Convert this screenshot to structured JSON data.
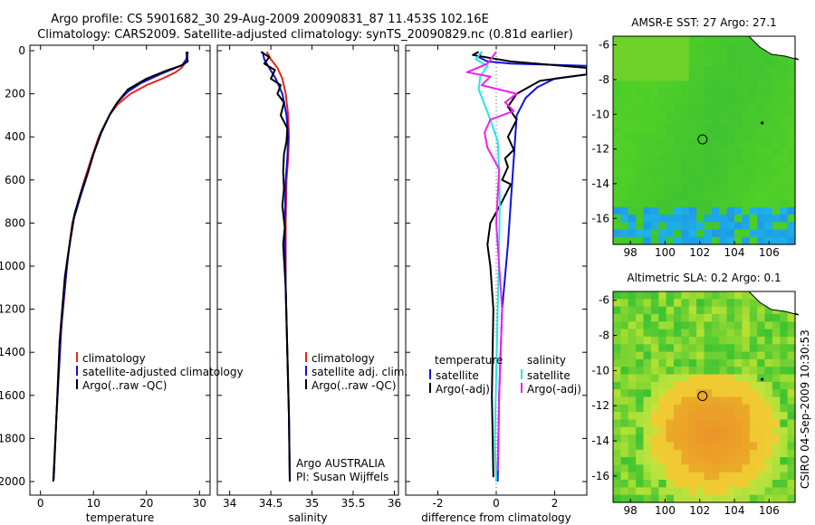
{
  "title_line1": "Argo profile: CS 5901682_30 29-Aug-2009 20090831_87 11.453S 102.16E",
  "title_line2": "Climatology: CARS2009. Satellite-adjusted climatology: synTS_20090829.nc (0.81d earlier)",
  "credit": "CSIRO 04-Sep-2009 10:30:53",
  "colors": {
    "climatology": "#e8231e",
    "satellite": "#1010e0",
    "argo": "#000000",
    "sal_satellite": "#22e6e6",
    "sal_argo": "#f020f0"
  },
  "chart_data": [
    {
      "id": "temperature",
      "type": "line",
      "xlabel": "temperature",
      "xlim": [
        -2,
        32
      ],
      "ylim": [
        0,
        2050
      ],
      "xticks": [
        0,
        10,
        20,
        30
      ],
      "xtick_labels": [
        "0",
        "10",
        "20",
        "30"
      ],
      "yticks": [
        0,
        200,
        400,
        600,
        800,
        1000,
        1200,
        1400,
        1600,
        1800,
        2000
      ],
      "ytick_labels": [
        "0",
        "200",
        "400",
        "600",
        "800",
        "1000",
        "1200",
        "1400",
        "1600",
        "1800",
        "2000"
      ],
      "legend": [
        "climatology",
        "satellite-adjusted climatology",
        "Argo(..raw -QC)"
      ],
      "series": [
        {
          "name": "climatology",
          "x": [
            27.8,
            27.7,
            27.2,
            26.6,
            25.5,
            23.0,
            20.0,
            17.0,
            14.5,
            13.0,
            11.0,
            9.6,
            8.3,
            7.1,
            6.0,
            5.0,
            3.9,
            3.0,
            2.5
          ],
          "y": [
            5,
            30,
            60,
            80,
            100,
            130,
            160,
            200,
            250,
            300,
            400,
            500,
            600,
            700,
            800,
            1000,
            1300,
            1700,
            1990
          ]
        },
        {
          "name": "satellite-adjusted climatology",
          "x": [
            27.8,
            27.5,
            26.8,
            25.0,
            22.5,
            19.0,
            16.5,
            14.5,
            13.2,
            11.5,
            10.0,
            8.8,
            7.5,
            6.3,
            5.2,
            4.0,
            3.0,
            2.5
          ],
          "y": [
            5,
            40,
            65,
            85,
            110,
            150,
            190,
            240,
            290,
            380,
            480,
            580,
            680,
            780,
            950,
            1250,
            1700,
            1990
          ]
        },
        {
          "name": "Argo(..raw -QC)",
          "x": [
            27.5,
            27.8,
            26.5,
            24.0,
            20.0,
            16.5,
            14.5,
            13.0,
            11.4,
            10.0,
            9.0,
            7.6,
            6.4,
            5.7,
            4.6,
            3.6,
            3.0,
            2.4
          ],
          "y": [
            5,
            50,
            70,
            90,
            130,
            180,
            240,
            300,
            380,
            480,
            560,
            660,
            760,
            860,
            1050,
            1350,
            1700,
            2000
          ]
        }
      ]
    },
    {
      "id": "salinity",
      "type": "line",
      "xlabel": "salinity",
      "xlim": [
        33.85,
        36.05
      ],
      "ylim": [
        0,
        2050
      ],
      "xticks": [
        34,
        34.5,
        35,
        35.5,
        36
      ],
      "xtick_labels": [
        "34",
        "34.5",
        "35",
        "35.5",
        "36"
      ],
      "legend": [
        "climatology",
        "satellite adj. clim.",
        "Argo(..raw -QC)"
      ],
      "annotation": [
        "Argo AUSTRALIA",
        "PI: Susan Wijffels"
      ],
      "series": [
        {
          "name": "climatology",
          "x": [
            34.45,
            34.5,
            34.58,
            34.64,
            34.68,
            34.71,
            34.72,
            34.71,
            34.69,
            34.68,
            34.68,
            34.7,
            34.72,
            34.73
          ],
          "y": [
            5,
            40,
            80,
            130,
            200,
            300,
            400,
            500,
            600,
            800,
            1100,
            1400,
            1700,
            1990
          ]
        },
        {
          "name": "satellite adj. clim.",
          "x": [
            34.4,
            34.42,
            34.48,
            34.56,
            34.64,
            34.69,
            34.71,
            34.7,
            34.68,
            34.67,
            34.68,
            34.7,
            34.72,
            34.73
          ],
          "y": [
            5,
            40,
            80,
            130,
            200,
            300,
            400,
            500,
            600,
            800,
            1100,
            1400,
            1700,
            1990
          ]
        },
        {
          "name": "Argo(..raw -QC)",
          "x": [
            34.38,
            34.48,
            34.42,
            34.55,
            34.5,
            34.62,
            34.58,
            34.66,
            34.62,
            34.7,
            34.69,
            34.66,
            34.65,
            34.66,
            34.64,
            34.67,
            34.65,
            34.68,
            34.7,
            34.72,
            34.73
          ],
          "y": [
            5,
            30,
            60,
            90,
            130,
            160,
            200,
            240,
            300,
            360,
            420,
            480,
            560,
            640,
            720,
            820,
            900,
            1100,
            1400,
            1700,
            2000
          ]
        }
      ]
    },
    {
      "id": "difference",
      "type": "line",
      "xlabel": "difference from climatology",
      "xlim": [
        -3.1,
        3.1
      ],
      "ylim": [
        0,
        2050
      ],
      "xticks": [
        -2,
        0,
        2
      ],
      "xtick_labels": [
        "-2",
        "0",
        "2"
      ],
      "legend_left_title": "temperature",
      "legend_right_title": "salinity",
      "legend_left": [
        "satellite",
        "Argo(-adj)"
      ],
      "legend_right": [
        "satellite",
        "Argo(-adj)"
      ],
      "series": [
        {
          "name": "temperature satellite",
          "x": [
            -0.5,
            -0.6,
            -0.3,
            0.5,
            3.1,
            3.1,
            2.0,
            1.4,
            1.0,
            0.7,
            0.6,
            0.5,
            0.4,
            0.2,
            0.1,
            0.05
          ],
          "y": [
            5,
            30,
            50,
            60,
            70,
            110,
            130,
            170,
            220,
            300,
            500,
            700,
            900,
            1200,
            1600,
            2000
          ]
        },
        {
          "name": "temperature Argo(-adj)",
          "x": [
            -0.6,
            -0.8,
            0.5,
            3.1,
            3.1,
            1.5,
            0.7,
            0.4,
            0.7,
            0.4,
            0.6,
            0.3,
            0.4,
            0.2,
            0.5,
            0.2,
            -0.2,
            -0.3,
            -0.2,
            -0.1,
            -0.15,
            -0.1
          ],
          "y": [
            5,
            20,
            50,
            80,
            110,
            140,
            200,
            260,
            320,
            400,
            460,
            500,
            540,
            600,
            620,
            700,
            800,
            900,
            1000,
            1200,
            1600,
            1980
          ]
        },
        {
          "name": "salinity satellite",
          "x": [
            -0.5,
            -0.7,
            -0.3,
            -0.4,
            -0.55,
            -0.6,
            -0.4,
            -0.2,
            0.05,
            0.1,
            0.12,
            0.1,
            0.05,
            0.0,
            -0.05,
            0.0
          ],
          "y": [
            5,
            40,
            70,
            90,
            120,
            180,
            250,
            320,
            420,
            550,
            700,
            900,
            1200,
            1500,
            1800,
            2000
          ]
        },
        {
          "name": "salinity Argo(-adj)",
          "x": [
            0.0,
            -0.3,
            -1.0,
            -0.2,
            -0.5,
            0.7,
            0.3,
            0.6,
            -0.2,
            -0.4,
            -0.3,
            0.1,
            0.0,
            0.2,
            0.1,
            0.05
          ],
          "y": [
            5,
            60,
            100,
            120,
            160,
            200,
            240,
            280,
            320,
            380,
            450,
            550,
            800,
            1200,
            1600,
            1950
          ]
        }
      ]
    },
    {
      "id": "sst_map",
      "type": "heatmap",
      "title": "AMSR-E SST: 27  Argo: 27.1",
      "xlim": [
        97,
        107.5
      ],
      "ylim": [
        -17.5,
        -5.5
      ],
      "xticks": [
        98,
        100,
        102,
        104,
        106
      ],
      "xtick_labels": [
        "98",
        "100",
        "102",
        "104",
        "106"
      ],
      "yticks": [
        -6,
        -8,
        -10,
        -12,
        -14,
        -16
      ],
      "ytick_labels": [
        "-6",
        "-8",
        "-10",
        "-12",
        "-14",
        "-16"
      ],
      "profile_location": [
        102.16,
        -11.45
      ]
    },
    {
      "id": "sla_map",
      "type": "heatmap",
      "title": "Altimetric SLA: 0.2  Argo: 0.1",
      "xlim": [
        97,
        107.5
      ],
      "ylim": [
        -17.5,
        -5.5
      ],
      "xticks": [
        98,
        100,
        102,
        104,
        106
      ],
      "xtick_labels": [
        "98",
        "100",
        "102",
        "104",
        "106"
      ],
      "yticks": [
        -6,
        -8,
        -10,
        -12,
        -14,
        -16
      ],
      "ytick_labels": [
        "-6",
        "-8",
        "-10",
        "-12",
        "-14",
        "-16"
      ],
      "profile_location": [
        102.16,
        -11.45
      ]
    }
  ]
}
